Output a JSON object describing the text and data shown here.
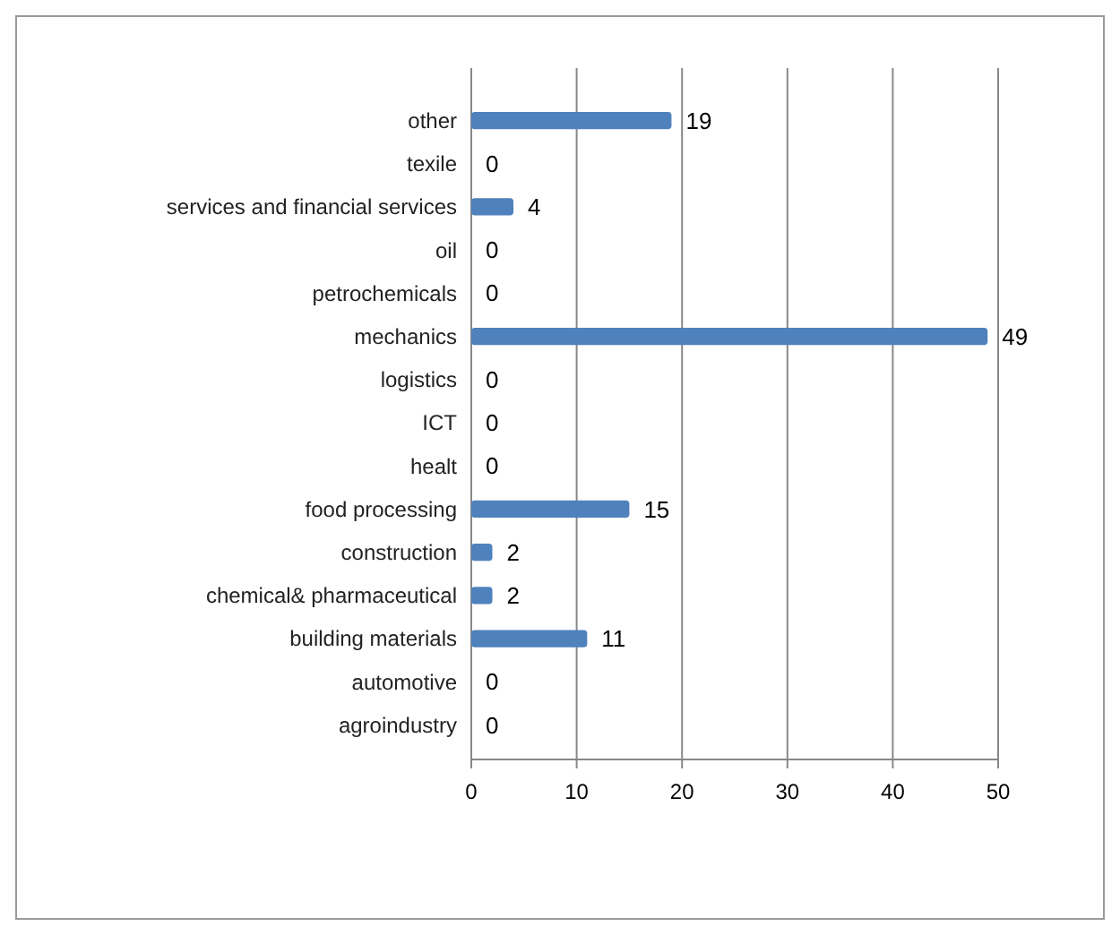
{
  "chart_data": {
    "type": "bar",
    "orientation": "horizontal",
    "categories": [
      "other",
      "texile",
      "services and financial services",
      "oil",
      "petrochemicals",
      "mechanics",
      "logistics",
      "ICT",
      "healt",
      "food processing",
      "construction",
      "chemical& pharmaceutical",
      "building materials",
      "automotive",
      "agroindustry"
    ],
    "values": [
      19,
      0,
      4,
      0,
      0,
      49,
      0,
      0,
      0,
      15,
      2,
      2,
      11,
      0,
      0
    ],
    "color": "#4f81bd",
    "xlim": [
      0,
      50
    ],
    "xticks": [
      0,
      10,
      20,
      30,
      40,
      50
    ],
    "grid": "x",
    "data_labels": true
  }
}
